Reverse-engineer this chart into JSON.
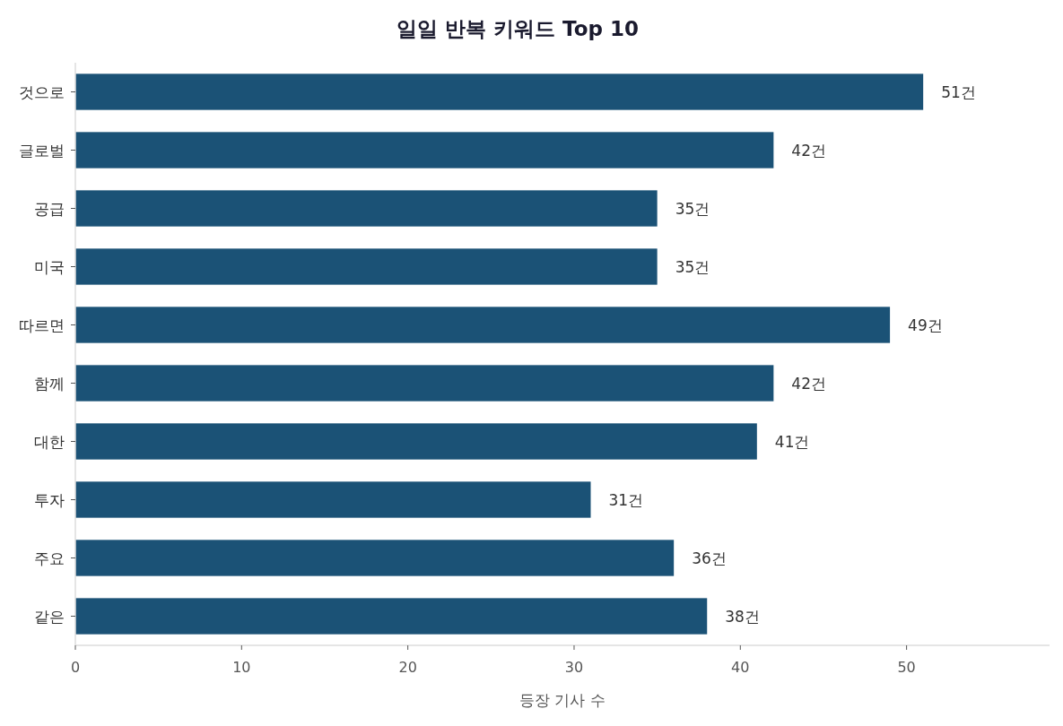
{
  "chart_data": {
    "type": "bar",
    "orientation": "horizontal",
    "title": "일일 반복 키워드 Top 10",
    "xlabel": "등장 기사 수",
    "categories": [
      "것으로",
      "글로벌",
      "공급",
      "미국",
      "따르면",
      "함께",
      "대한",
      "투자",
      "주요",
      "같은"
    ],
    "values": [
      51,
      42,
      35,
      35,
      49,
      42,
      41,
      31,
      36,
      38
    ],
    "value_labels": [
      "51건",
      "42건",
      "35건",
      "35건",
      "49건",
      "42건",
      "41건",
      "31건",
      "36건",
      "38건"
    ],
    "color": "#1b5276",
    "xlim": [
      0,
      58.6
    ],
    "xticks": [
      0,
      10,
      20,
      30,
      40,
      50
    ],
    "grid": false
  }
}
